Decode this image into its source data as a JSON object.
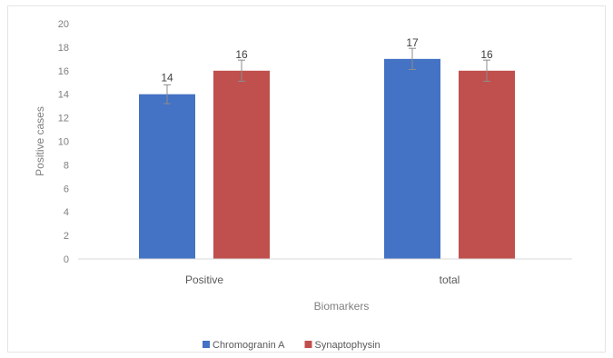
{
  "chart_data": {
    "type": "bar",
    "title": "",
    "xlabel": "Biomarkers",
    "ylabel": "Positive cases",
    "categories": [
      "Positive",
      "total"
    ],
    "series": [
      {
        "name": "Chromogranin A",
        "color": "#4472c4",
        "values": [
          14,
          17
        ],
        "error": [
          0.8,
          0.9
        ]
      },
      {
        "name": "Synaptophysin",
        "color": "#c0504d",
        "values": [
          16,
          16
        ],
        "error": [
          0.9,
          0.9
        ]
      }
    ],
    "data_labels": [
      [
        "14",
        "17"
      ],
      [
        "16",
        "16"
      ]
    ],
    "ylim": [
      0,
      20
    ],
    "yticks": [
      0,
      2,
      4,
      6,
      8,
      10,
      12,
      14,
      16,
      18,
      20
    ],
    "grid": false,
    "legend_position": "bottom"
  }
}
